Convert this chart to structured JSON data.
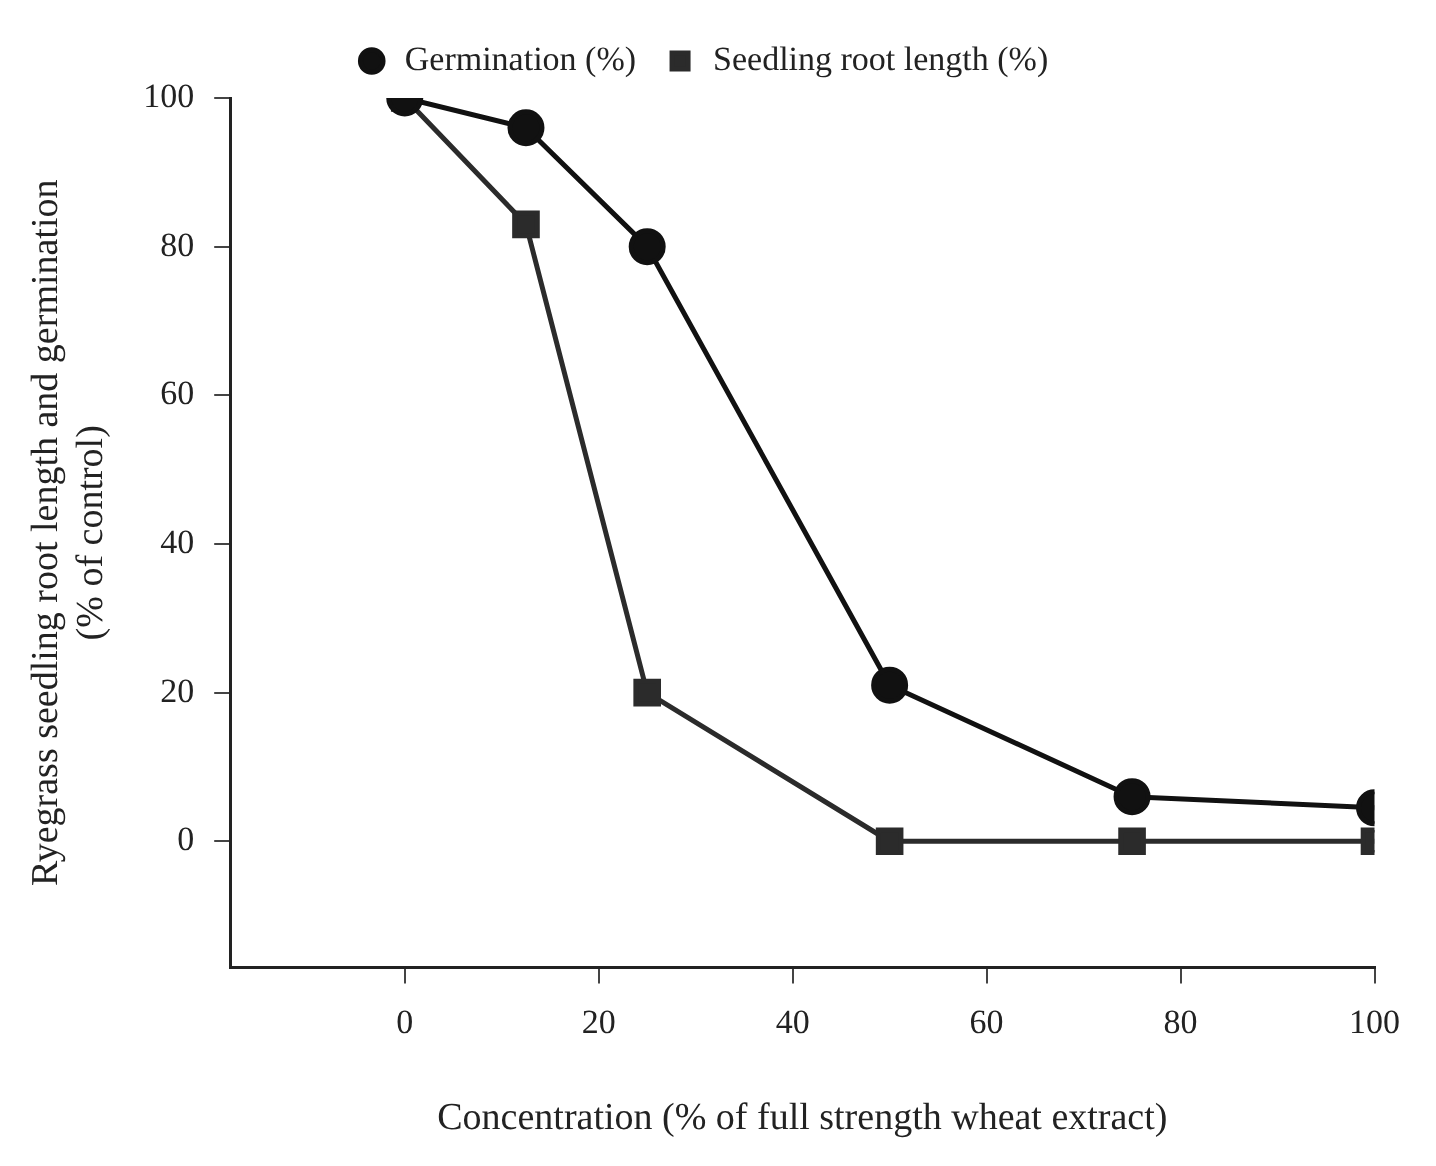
{
  "chart_data": {
    "type": "line",
    "xlabel": "Concentration (% of full strength wheat extract)",
    "ylabel": "Ryegrass seedling root length and germination\n(% of control)",
    "x": [
      0,
      12.5,
      25,
      50,
      75,
      100
    ],
    "series": [
      {
        "name": "Germination (%)",
        "color": "#111111",
        "marker": "circle",
        "values": [
          100,
          96,
          80,
          21,
          6,
          4.5
        ]
      },
      {
        "name": "Seedling root length (%)",
        "color": "#2b2b2b",
        "marker": "square",
        "values": [
          100,
          83,
          20,
          0,
          0,
          0
        ]
      }
    ],
    "xlim": [
      -18,
      100
    ],
    "xticks": [
      0,
      20,
      40,
      60,
      80,
      100
    ],
    "ylim": [
      -17,
      100
    ],
    "yticks": [
      0,
      20,
      40,
      60,
      80,
      100
    ],
    "grid": false,
    "legend": "top",
    "line_style": "solid"
  }
}
